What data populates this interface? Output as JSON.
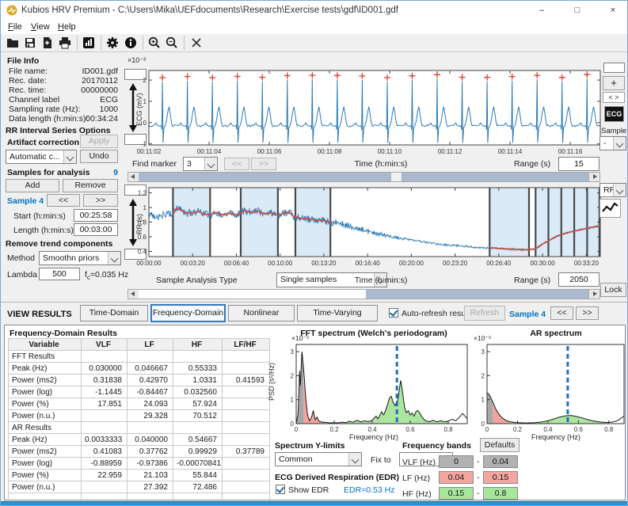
{
  "window": {
    "title": "Kubios HRV Premium - C:\\Users\\Mika\\UEFdocuments\\Research\\Exercise tests\\gdf\\ID001.gdf",
    "minimize": "–",
    "maximize": "□",
    "close": "×"
  },
  "menu": {
    "items": [
      {
        "head": "F",
        "tail": "ile"
      },
      {
        "head": "V",
        "tail": "iew"
      },
      {
        "head": "H",
        "tail": "elp"
      }
    ]
  },
  "toolbar": {
    "icons": [
      "open-file",
      "save",
      "export-document",
      "print",
      "report",
      "settings",
      "about",
      "zoom-in",
      "zoom-out",
      "close-file"
    ]
  },
  "file_info": {
    "title": "File Info",
    "rows": [
      {
        "label": "File name:",
        "value": "ID001.gdf"
      },
      {
        "label": "Rec. date:",
        "value": "20170112"
      },
      {
        "label": "Rec. time:",
        "value": "00000000"
      },
      {
        "label": "Channel label",
        "value": "ECG"
      },
      {
        "label": "Sampling rate (Hz):",
        "value": "1000"
      },
      {
        "label": "Data length (h:min:s):",
        "value": "00:34:24"
      }
    ]
  },
  "rr_options": {
    "title": "RR Interval Series Options",
    "artifact_label": "Artifact correction",
    "artifact_value": "Automatic c...",
    "apply": "Apply",
    "undo": "Undo",
    "samples_label": "Samples for analysis",
    "samples_count": "9",
    "add": "Add",
    "remove": "Remove",
    "sample_name": "Sample 4",
    "prev": "<<",
    "next": ">>",
    "start_label": "Start (h:min:s)",
    "start_value": "00:25:58",
    "length_label": "Length (h:min:s)",
    "length_value": "00:03:00"
  },
  "trend_options": {
    "title": "Remove trend components",
    "method_label": "Method",
    "method_value": "Smoothn priors",
    "lambda_label": "Lambda",
    "lambda_value": "500",
    "fc_pre": "f",
    "fc_sub": "c",
    "fc_post": "=0.035 Hz"
  },
  "ecg_controls": {
    "find_marker": "Find marker",
    "marker_value": "3",
    "prev": "<<",
    "next": ">>",
    "range_label": "Range (s)",
    "range_value": "15"
  },
  "rr_controls": {
    "type_label": "Sample Analysis Type",
    "type_value": "Single samples",
    "range_label": "Range (s)",
    "range_value": "2050",
    "lock": "Lock"
  },
  "right_strip": {
    "zoom_in": "+",
    "pan": "< >",
    "channel": "ECG",
    "sample_label": "Sample",
    "sample_value": "-",
    "series_value": "RR"
  },
  "results_bar": {
    "title": "VIEW RESULTS",
    "tabs": [
      {
        "label": "Time-Domain",
        "active": false
      },
      {
        "label": "Frequency-Domain",
        "active": true
      },
      {
        "label": "Nonlinear",
        "active": false
      },
      {
        "label": "Time-Varying",
        "active": false
      }
    ],
    "auto_refresh_label": "Auto-refresh results",
    "auto_refresh_checked": true,
    "refresh": "Refresh",
    "sample_name": "Sample 4",
    "prev": "<<",
    "next": ">>"
  },
  "results": {
    "title": "Frequency-Domain Results",
    "table": {
      "headers": [
        "Variable",
        "VLF",
        "LF",
        "HF",
        "LF/HF"
      ],
      "rows": [
        [
          "FFT Results",
          "",
          "",
          "",
          ""
        ],
        [
          "Peak (Hz)",
          "0.030000",
          "0.046667",
          "0.55333",
          ""
        ],
        [
          "Power (ms2)",
          "0.31838",
          "0.42970",
          "1.0331",
          "0.41593"
        ],
        [
          "Power (log)",
          "-1.1445",
          "-0.84467",
          "0.032560",
          ""
        ],
        [
          "Power (%)",
          "17.851",
          "24.093",
          "57.924",
          ""
        ],
        [
          "Power (n.u.)",
          "",
          "29.328",
          "70.512",
          ""
        ],
        [
          "AR Results",
          "",
          "",
          "",
          ""
        ],
        [
          "Peak (Hz)",
          "0.0033333",
          "0.040000",
          "0.54667",
          ""
        ],
        [
          "Power (ms2)",
          "0.41083",
          "0.37762",
          "0.99929",
          "0.37789"
        ],
        [
          "Power (log)",
          "-0.88959",
          "-0.97386",
          "-0.00070841",
          ""
        ],
        [
          "Power (%)",
          "22.959",
          "21.103",
          "55.844",
          ""
        ],
        [
          "Power (n.u.)",
          "",
          "27.392",
          "72.486",
          ""
        ],
        [
          "",
          "",
          "",
          "",
          ""
        ]
      ]
    }
  },
  "spectrum_controls": {
    "ylimits_title": "Spectrum Y-limits",
    "ylimits_value": "Common",
    "fix_label": "Fix to",
    "fix_value": "",
    "edr_title": "ECG Derived Respiration (EDR)",
    "show_edr_label": "Show EDR",
    "show_edr_checked": true,
    "edr_value": "EDR=0.53 Hz",
    "bands_title": "Frequency bands",
    "defaults": "Defaults",
    "bands": [
      {
        "label": "VLF (Hz)",
        "from": "0",
        "to": "0.04",
        "color": "#b2b2b2"
      },
      {
        "label": "LF (Hz)",
        "from": "0.04",
        "to": "0.15",
        "color": "#f4a7a1"
      },
      {
        "label": "HF (Hz)",
        "from": "0.15",
        "to": "0.8",
        "color": "#a6e79c"
      }
    ]
  },
  "chart_data": [
    {
      "id": "ecg",
      "type": "line",
      "ylabel": "ECG (mV)",
      "y_multiplier": "×10⁻³",
      "xlabel": "Time (h:min:s)",
      "x_ticks": [
        "00:11:02",
        "00:11:04",
        "00:11:06",
        "00:11:08",
        "00:11:10",
        "00:11:12",
        "00:11:14",
        "00:11:16"
      ],
      "x_tick_spacing_s": 2,
      "duration_s": 15,
      "y_ticks": [
        "2",
        "1",
        "0",
        "-1"
      ],
      "y_tick_values": [
        2,
        1,
        0,
        -1
      ],
      "ylim": [
        -1.05,
        2.45
      ],
      "r_peaks_s": [
        0.45,
        1.28,
        2.11,
        2.94,
        3.77,
        4.6,
        5.43,
        6.26,
        7.09,
        7.92,
        8.75,
        9.58,
        10.41,
        11.24,
        12.07,
        12.9,
        13.73,
        14.56
      ],
      "r_peak_height_mv": 2.0,
      "line_color": "#2e7bb5",
      "marker_color": "#e03a2f",
      "marker": "+"
    },
    {
      "id": "rr",
      "type": "line",
      "ylabel": "RR (s)",
      "xlabel": "Time (h:min:s)",
      "x_ticks": [
        "00:00:00",
        "00:03:20",
        "00:06:40",
        "00:10:00",
        "00:13:20",
        "00:16:40",
        "00:20:00",
        "00:23:20",
        "00:26:40",
        "00:30:00",
        "00:33:20"
      ],
      "x_tick_spacing_s": 200,
      "duration_s": 2064,
      "y_ticks": [
        "1.2",
        "1",
        "0.8",
        "0.6",
        "0.4"
      ],
      "y_tick_values": [
        1.2,
        1,
        0.8,
        0.6,
        0.4
      ],
      "ylim": [
        0.33,
        1.27
      ],
      "trend": [
        [
          0,
          0.9
        ],
        [
          40,
          0.87
        ],
        [
          80,
          0.91
        ],
        [
          110,
          0.9
        ],
        [
          125,
          0.99
        ],
        [
          140,
          0.97
        ],
        [
          170,
          0.93
        ],
        [
          200,
          0.92
        ],
        [
          225,
          0.95
        ],
        [
          250,
          0.91
        ],
        [
          280,
          0.9
        ],
        [
          310,
          0.93
        ],
        [
          340,
          0.9
        ],
        [
          370,
          0.92
        ],
        [
          400,
          0.9
        ],
        [
          420,
          0.93
        ],
        [
          440,
          0.96
        ],
        [
          470,
          0.93
        ],
        [
          500,
          0.95
        ],
        [
          530,
          0.91
        ],
        [
          560,
          0.93
        ],
        [
          590,
          0.89
        ],
        [
          615,
          0.92
        ],
        [
          640,
          0.94
        ],
        [
          660,
          0.88
        ],
        [
          670,
          0.87
        ],
        [
          700,
          0.85
        ],
        [
          730,
          0.84
        ],
        [
          760,
          0.83
        ],
        [
          800,
          0.82
        ],
        [
          830,
          0.8
        ],
        [
          870,
          0.79
        ],
        [
          900,
          0.76
        ],
        [
          950,
          0.72
        ],
        [
          1000,
          0.67
        ],
        [
          1050,
          0.64
        ],
        [
          1100,
          0.61
        ],
        [
          1150,
          0.58
        ],
        [
          1200,
          0.56
        ],
        [
          1250,
          0.53
        ],
        [
          1300,
          0.51
        ],
        [
          1350,
          0.49
        ],
        [
          1400,
          0.48
        ],
        [
          1450,
          0.47
        ],
        [
          1500,
          0.455
        ],
        [
          1558,
          0.45
        ],
        [
          1600,
          0.44
        ],
        [
          1650,
          0.432
        ],
        [
          1700,
          0.425
        ],
        [
          1740,
          0.422
        ],
        [
          1770,
          0.44
        ],
        [
          1800,
          0.5
        ],
        [
          1830,
          0.55
        ],
        [
          1860,
          0.6
        ],
        [
          1900,
          0.645
        ],
        [
          1940,
          0.675
        ],
        [
          1980,
          0.7
        ],
        [
          2020,
          0.725
        ],
        [
          2064,
          0.75
        ]
      ],
      "trend_segments": [
        [
          110,
          840
        ],
        [
          1558,
          2064
        ]
      ],
      "samples": [
        [
          110,
          280
        ],
        [
          420,
          590
        ],
        [
          670,
          830
        ],
        [
          1558,
          1738
        ],
        [
          1768,
          2064
        ]
      ],
      "boundaries": [
        110,
        280,
        420,
        590,
        670,
        830,
        1558,
        1738,
        1768,
        1827,
        1886,
        1945,
        2004,
        2060
      ],
      "line_color": "#2e7bb5",
      "trend_color": "#c9504a",
      "sample_fill": "#daeaf6"
    },
    {
      "id": "fft",
      "type": "area",
      "title": "FFT spectrum (Welch's periodogram)",
      "xlabel": "Frequency (Hz)",
      "ylabel": "PSD (s²/Hz)",
      "y_multiplier": "×10⁻⁵",
      "x_ticks": [
        "0",
        "0.2",
        "0.4",
        "0.6",
        "0.8"
      ],
      "x_tick_values": [
        0,
        0.2,
        0.4,
        0.6,
        0.8
      ],
      "y_ticks": [
        "0",
        "1",
        "2",
        "3"
      ],
      "y_tick_values": [
        0,
        1,
        2,
        3
      ],
      "xlim": [
        0,
        0.9
      ],
      "ylim": [
        0,
        3.3
      ],
      "bands": {
        "vlf": [
          0,
          0.04
        ],
        "lf": [
          0.04,
          0.15
        ],
        "hf": [
          0.15,
          0.8
        ]
      },
      "band_colors": {
        "vlf": "#a8a8a8",
        "lf": "#f3a39d",
        "hf": "#abe5a0"
      },
      "edr_line_hz": 0.53,
      "edr_color": "#1d6fc0",
      "line_color": "#1a1a1a",
      "points": [
        [
          0,
          0
        ],
        [
          0.01,
          0.4
        ],
        [
          0.018,
          2.2
        ],
        [
          0.022,
          1.5
        ],
        [
          0.03,
          3.05
        ],
        [
          0.04,
          2.2
        ],
        [
          0.05,
          1.1
        ],
        [
          0.06,
          0.35
        ],
        [
          0.07,
          0.12
        ],
        [
          0.08,
          0.25
        ],
        [
          0.09,
          0.55
        ],
        [
          0.095,
          0.35
        ],
        [
          0.1,
          0.15
        ],
        [
          0.11,
          0.28
        ],
        [
          0.12,
          0.1
        ],
        [
          0.14,
          0.06
        ],
        [
          0.16,
          0.05
        ],
        [
          0.18,
          0.03
        ],
        [
          0.2,
          0.04
        ],
        [
          0.22,
          0.03
        ],
        [
          0.24,
          0.06
        ],
        [
          0.26,
          0.04
        ],
        [
          0.28,
          0.1
        ],
        [
          0.3,
          0.06
        ],
        [
          0.32,
          0.14
        ],
        [
          0.34,
          0.07
        ],
        [
          0.36,
          0.12
        ],
        [
          0.38,
          0.08
        ],
        [
          0.4,
          0.14
        ],
        [
          0.42,
          0.32
        ],
        [
          0.43,
          0.2
        ],
        [
          0.45,
          0.5
        ],
        [
          0.46,
          0.35
        ],
        [
          0.475,
          0.65
        ],
        [
          0.49,
          1.05
        ],
        [
          0.5,
          1.15
        ],
        [
          0.51,
          0.9
        ],
        [
          0.52,
          0.75
        ],
        [
          0.535,
          1.0
        ],
        [
          0.55,
          1.82
        ],
        [
          0.56,
          1.3
        ],
        [
          0.57,
          0.7
        ],
        [
          0.58,
          0.45
        ],
        [
          0.59,
          0.55
        ],
        [
          0.6,
          0.35
        ],
        [
          0.61,
          0.45
        ],
        [
          0.62,
          0.3
        ],
        [
          0.63,
          0.5
        ],
        [
          0.64,
          0.55
        ],
        [
          0.65,
          0.45
        ],
        [
          0.66,
          0.3
        ],
        [
          0.67,
          0.2
        ],
        [
          0.68,
          0.12
        ],
        [
          0.7,
          0.08
        ],
        [
          0.72,
          0.14
        ],
        [
          0.74,
          0.08
        ],
        [
          0.76,
          0.12
        ],
        [
          0.78,
          0.08
        ],
        [
          0.8,
          0.1
        ],
        [
          0.82,
          0.18
        ],
        [
          0.84,
          0.12
        ],
        [
          0.86,
          0.28
        ],
        [
          0.875,
          0.42
        ],
        [
          0.89,
          0.3
        ],
        [
          0.9,
          0.2
        ]
      ]
    },
    {
      "id": "ar",
      "type": "area",
      "title": "AR spectrum",
      "xlabel": "Frequency (Hz)",
      "ylabel": "PSD (s²/Hz)",
      "y_multiplier": "×10⁻⁵",
      "x_ticks": [
        "0",
        "0.2",
        "0.4",
        "0.6",
        "0.8"
      ],
      "x_tick_values": [
        0,
        0.2,
        0.4,
        0.6,
        0.8
      ],
      "y_ticks": [
        "0",
        "1",
        "2",
        "3"
      ],
      "y_tick_values": [
        0,
        1,
        2,
        3
      ],
      "xlim": [
        0,
        0.9
      ],
      "ylim": [
        0,
        3.3
      ],
      "bands": {
        "vlf": [
          0,
          0.04
        ],
        "lf": [
          0.04,
          0.15
        ],
        "hf": [
          0.15,
          0.8
        ]
      },
      "band_colors": {
        "vlf": "#a8a8a8",
        "lf": "#f3a39d",
        "hf": "#abe5a0"
      },
      "edr_line_hz": 0.53,
      "edr_color": "#1d6fc0",
      "line_color": "#1a1a1a",
      "points": [
        [
          0,
          1.28
        ],
        [
          0.01,
          1.25
        ],
        [
          0.02,
          1.15
        ],
        [
          0.03,
          1.0
        ],
        [
          0.04,
          0.88
        ],
        [
          0.05,
          0.72
        ],
        [
          0.06,
          0.58
        ],
        [
          0.08,
          0.38
        ],
        [
          0.1,
          0.24
        ],
        [
          0.12,
          0.15
        ],
        [
          0.14,
          0.1
        ],
        [
          0.16,
          0.07
        ],
        [
          0.2,
          0.04
        ],
        [
          0.25,
          0.03
        ],
        [
          0.3,
          0.035
        ],
        [
          0.35,
          0.06
        ],
        [
          0.4,
          0.12
        ],
        [
          0.44,
          0.2
        ],
        [
          0.48,
          0.28
        ],
        [
          0.52,
          0.33
        ],
        [
          0.55,
          0.34
        ],
        [
          0.58,
          0.31
        ],
        [
          0.62,
          0.25
        ],
        [
          0.66,
          0.17
        ],
        [
          0.7,
          0.11
        ],
        [
          0.74,
          0.07
        ],
        [
          0.78,
          0.05
        ],
        [
          0.82,
          0.06
        ],
        [
          0.86,
          0.13
        ],
        [
          0.9,
          0.32
        ]
      ]
    }
  ]
}
